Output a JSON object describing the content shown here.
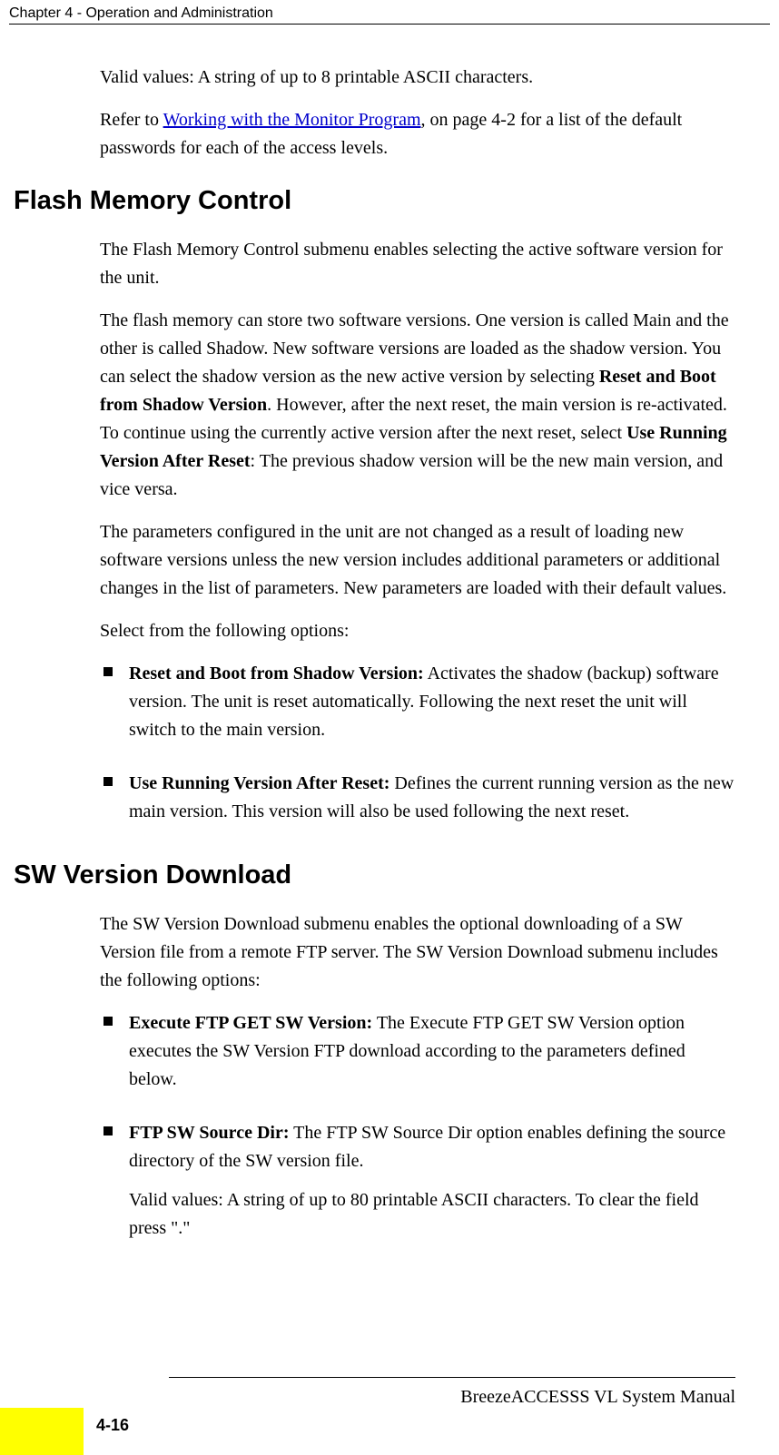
{
  "header": {
    "running_title": "Chapter 4 - Operation and Administration"
  },
  "main": {
    "intro": {
      "valid_values": "Valid values: A string of up to 8 printable ASCII characters.",
      "refer_pre": "Refer to ",
      "refer_link": "Working with the Monitor Program",
      "refer_post": ", on page 4-2 for a list of the default passwords for each of the access levels."
    },
    "flash": {
      "heading": "Flash Memory Control",
      "p1": "The Flash Memory Control submenu enables selecting the active software version for the unit.",
      "p2a": "The flash memory can store two software versions. One version is called Main and the other is called Shadow. New software versions are loaded as the shadow version. You can select the shadow version as the new active version by selecting ",
      "p2_bold1": "Reset and Boot from Shadow Version",
      "p2b": ". However, after the next reset, the main version is re-activated. To continue using the currently active version after the next reset, select ",
      "p2_bold2": "Use Running Version After Reset",
      "p2c": ": The previous shadow version will be the new main version, and vice versa.",
      "p3": "The parameters configured in the unit are not changed as a result of loading new software versions unless the new version includes additional parameters or additional changes in the list of parameters. New parameters are loaded with their default values.",
      "p4": "Select from the following options:",
      "items": [
        {
          "label": "Reset and Boot from Shadow Version:",
          "text": " Activates the shadow (backup) software version. The unit is reset automatically. Following the next reset the unit will switch to the main version."
        },
        {
          "label": "Use Running Version After Reset:",
          "text": " Defines the current running version as the new main version. This version will also be used following the next reset."
        }
      ]
    },
    "sw": {
      "heading": "SW Version Download",
      "p1": "The SW Version Download submenu enables the optional downloading of a SW Version file from a remote FTP server. The SW Version Download submenu includes the following options:",
      "items": [
        {
          "label": "Execute FTP GET SW Version:",
          "text": " The Execute FTP GET SW Version option executes the SW Version FTP download according to the parameters defined below."
        },
        {
          "label": "FTP SW Source Dir:",
          "text": " The FTP SW Source Dir option enables defining the source directory of the SW version file.",
          "sub": "Valid values: A string of up to 80 printable ASCII characters. To clear the field press \".\""
        }
      ]
    }
  },
  "footer": {
    "manual": "BreezeACCESSS VL System Manual",
    "page": "4-16"
  }
}
